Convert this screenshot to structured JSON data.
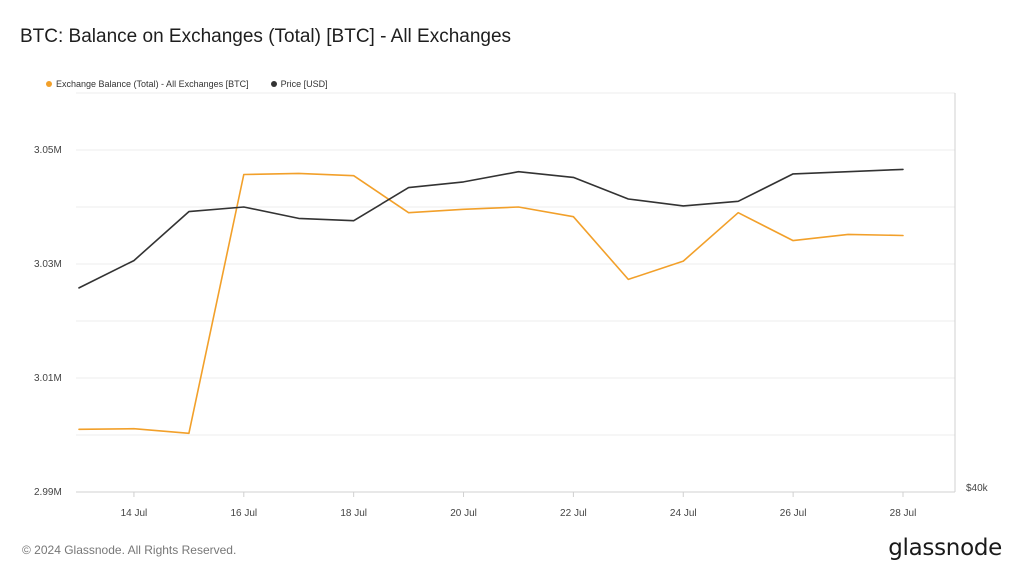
{
  "header": {
    "title": "BTC: Balance on Exchanges (Total) [BTC] - All Exchanges"
  },
  "colors": {
    "balance": "#f2a02a",
    "price": "#333333",
    "grid": "#ececec",
    "axis": "#d0d0d0"
  },
  "footer": {
    "copyright": "© 2024 Glassnode. All Rights Reserved.",
    "logo_text": "glassnode"
  },
  "chart_data": {
    "type": "line",
    "title": "BTC: Balance on Exchanges (Total) [BTC] - All Exchanges",
    "legend_position": "top-left",
    "grid": true,
    "x_range": [
      "2024-07-13",
      "2024-07-28"
    ],
    "x_ticks": [
      {
        "date": "2024-07-14",
        "label": "14 Jul"
      },
      {
        "date": "2024-07-16",
        "label": "16 Jul"
      },
      {
        "date": "2024-07-18",
        "label": "18 Jul"
      },
      {
        "date": "2024-07-20",
        "label": "20 Jul"
      },
      {
        "date": "2024-07-22",
        "label": "22 Jul"
      },
      {
        "date": "2024-07-24",
        "label": "24 Jul"
      },
      {
        "date": "2024-07-26",
        "label": "26 Jul"
      },
      {
        "date": "2024-07-28",
        "label": "28 Jul"
      }
    ],
    "y_left": {
      "ylim": [
        2990000,
        3060000
      ],
      "ticks": [
        {
          "value": 2990000,
          "label": "2.99M"
        },
        {
          "value": 3010000,
          "label": "3.01M"
        },
        {
          "value": 3030000,
          "label": "3.03M"
        },
        {
          "value": 3050000,
          "label": "3.05M"
        }
      ]
    },
    "y_right": {
      "ylim": [
        40000,
        75000
      ],
      "ticks": [
        {
          "value": 40000,
          "label": "$40k"
        }
      ]
    },
    "series": [
      {
        "name": "Exchange Balance (Total) - All Exchanges [BTC]",
        "axis": "left",
        "points": [
          {
            "x": "2024-07-13",
            "y": 3001000
          },
          {
            "x": "2024-07-14",
            "y": 3001100
          },
          {
            "x": "2024-07-15",
            "y": 3000300
          },
          {
            "x": "2024-07-16",
            "y": 3045700
          },
          {
            "x": "2024-07-17",
            "y": 3045900
          },
          {
            "x": "2024-07-18",
            "y": 3045500
          },
          {
            "x": "2024-07-19",
            "y": 3039000
          },
          {
            "x": "2024-07-20",
            "y": 3039600
          },
          {
            "x": "2024-07-21",
            "y": 3040000
          },
          {
            "x": "2024-07-22",
            "y": 3038300
          },
          {
            "x": "2024-07-23",
            "y": 3027300
          },
          {
            "x": "2024-07-24",
            "y": 3030500
          },
          {
            "x": "2024-07-25",
            "y": 3039000
          },
          {
            "x": "2024-07-26",
            "y": 3034100
          },
          {
            "x": "2024-07-27",
            "y": 3035200
          },
          {
            "x": "2024-07-28",
            "y": 3035000
          }
        ]
      },
      {
        "name": "Price [USD]",
        "axis": "right",
        "points": [
          {
            "x": "2024-07-13",
            "y": 57900
          },
          {
            "x": "2024-07-14",
            "y": 60300
          },
          {
            "x": "2024-07-15",
            "y": 64600
          },
          {
            "x": "2024-07-16",
            "y": 65000
          },
          {
            "x": "2024-07-17",
            "y": 64000
          },
          {
            "x": "2024-07-18",
            "y": 63800
          },
          {
            "x": "2024-07-19",
            "y": 66700
          },
          {
            "x": "2024-07-20",
            "y": 67200
          },
          {
            "x": "2024-07-21",
            "y": 68100
          },
          {
            "x": "2024-07-22",
            "y": 67600
          },
          {
            "x": "2024-07-23",
            "y": 65700
          },
          {
            "x": "2024-07-24",
            "y": 65100
          },
          {
            "x": "2024-07-25",
            "y": 65500
          },
          {
            "x": "2024-07-26",
            "y": 67900
          },
          {
            "x": "2024-07-27",
            "y": 68100
          },
          {
            "x": "2024-07-28",
            "y": 68300
          }
        ]
      }
    ]
  }
}
